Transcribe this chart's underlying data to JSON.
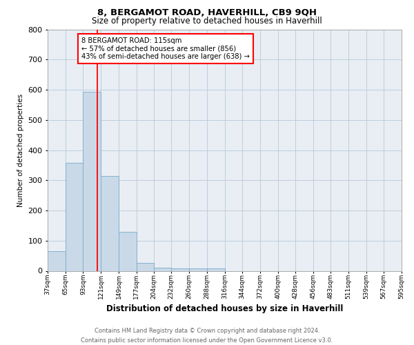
{
  "title": "8, BERGAMOT ROAD, HAVERHILL, CB9 9QH",
  "subtitle": "Size of property relative to detached houses in Haverhill",
  "xlabel": "Distribution of detached houses by size in Haverhill",
  "ylabel": "Number of detached properties",
  "bar_color": "#c9d9e8",
  "bar_edge_color": "#7aaac8",
  "bins": [
    37,
    65,
    93,
    121,
    149,
    177,
    204,
    232,
    260,
    288,
    316,
    344,
    372,
    400,
    428,
    456,
    483,
    511,
    539,
    567,
    595
  ],
  "counts": [
    65,
    358,
    593,
    314,
    130,
    27,
    10,
    8,
    8,
    8,
    0,
    0,
    0,
    0,
    0,
    0,
    0,
    0,
    0,
    0
  ],
  "red_line_x": 115,
  "ylim": [
    0,
    800
  ],
  "yticks": [
    0,
    100,
    200,
    300,
    400,
    500,
    600,
    700,
    800
  ],
  "annotation_text": "8 BERGAMOT ROAD: 115sqm\n← 57% of detached houses are smaller (856)\n43% of semi-detached houses are larger (638) →",
  "annotation_box_color": "white",
  "annotation_box_edge_color": "red",
  "footer_text": "Contains HM Land Registry data © Crown copyright and database right 2024.\nContains public sector information licensed under the Open Government Licence v3.0.",
  "tick_labels": [
    "37sqm",
    "65sqm",
    "93sqm",
    "121sqm",
    "149sqm",
    "177sqm",
    "204sqm",
    "232sqm",
    "260sqm",
    "288sqm",
    "316sqm",
    "344sqm",
    "372sqm",
    "400sqm",
    "428sqm",
    "456sqm",
    "483sqm",
    "511sqm",
    "539sqm",
    "567sqm",
    "595sqm"
  ],
  "background_color": "#e8eef4"
}
